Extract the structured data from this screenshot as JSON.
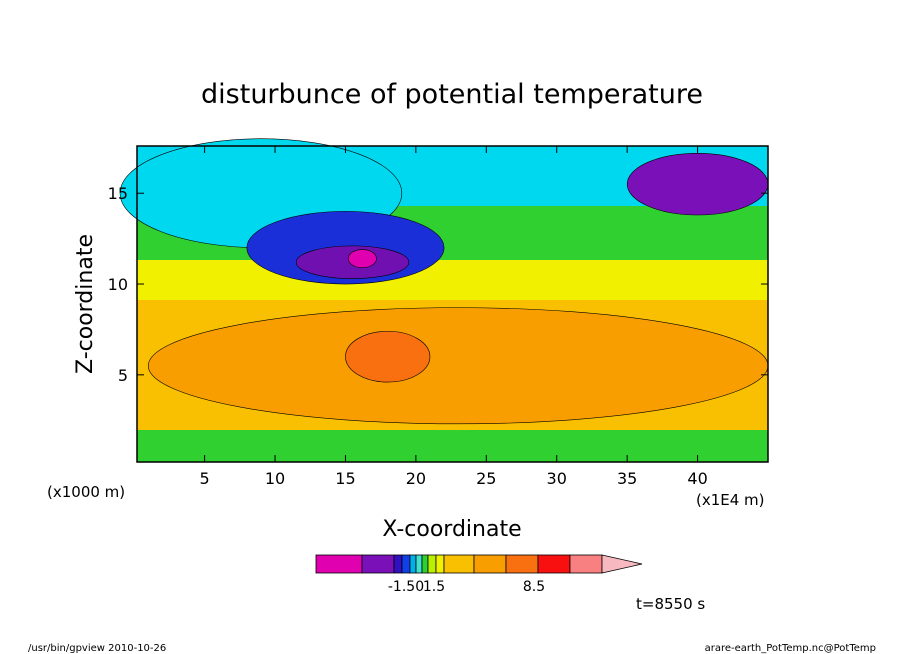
{
  "chart_data": {
    "type": "heatmap",
    "title": "disturbunce of potential temperature",
    "xlabel": "X-coordinate",
    "ylabel": "Z-coordinate",
    "x_unit_left": "(x1000 m)",
    "x_unit_right": "(x1E4 m)",
    "x_ticks": [
      5,
      10,
      15,
      20,
      25,
      30,
      35,
      40
    ],
    "y_ticks": [
      5,
      10,
      15
    ],
    "xlim": [
      0.2,
      45
    ],
    "ylim": [
      0.2,
      17.6
    ],
    "time_label": "t=8550 s",
    "colorbar": {
      "colors": [
        "#e000b0",
        "#7a10b8",
        "#3010c0",
        "#1040e8",
        "#00b0e8",
        "#40e0d0",
        "#30d030",
        "#b8f000",
        "#f0f000",
        "#f8c000",
        "#f89e00",
        "#f87010",
        "#f81010",
        "#f88080",
        "#f8b8c0"
      ],
      "tick_labels": [
        "-1.50",
        "1.5",
        "8.5"
      ]
    },
    "field_layers": [
      {
        "level": "cyan",
        "color": "#00d8f0",
        "cx": 9,
        "cy": 15,
        "rx": 10,
        "ry": 3
      },
      {
        "level": "blue",
        "color": "#1a2fd8",
        "cx": 15,
        "cy": 12,
        "rx": 7,
        "ry": 2
      },
      {
        "level": "purple",
        "color": "#7010b0",
        "cx": 15.5,
        "cy": 11.2,
        "rx": 4,
        "ry": 0.9
      },
      {
        "level": "magenta",
        "color": "#e000b0",
        "cx": 16.2,
        "cy": 11.4,
        "rx": 1,
        "ry": 0.5
      },
      {
        "level": "purple-top",
        "color": "#7a10b8",
        "cx": 40,
        "cy": 15.5,
        "rx": 5,
        "ry": 1.7
      },
      {
        "level": "orange",
        "color": "#f89e00",
        "cx": 23,
        "cy": 5.5,
        "rx": 22,
        "ry": 3.2
      },
      {
        "level": "dark-orange",
        "color": "#f87010",
        "cx": 18,
        "cy": 6,
        "rx": 3,
        "ry": 1.4
      }
    ]
  },
  "footer": {
    "left": "/usr/bin/gpview   2010-10-26",
    "right": "arare-earth_PotTemp.nc@PotTemp"
  }
}
